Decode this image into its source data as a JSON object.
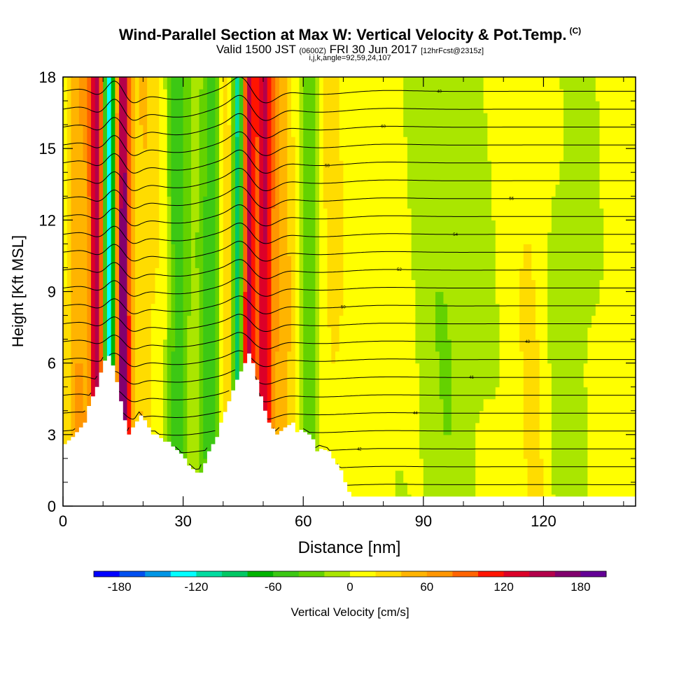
{
  "title": {
    "main": "Wind-Parallel Section at Max W: Vertical Velocity & Pot.Temp.",
    "copyright_mark": "(C)",
    "valid_prefix": "Valid 1500 JST",
    "valid_utc": "(0600Z)",
    "valid_date": "FRI 30 Jun 2017",
    "forecast_info": "[12hrFcst@2315z]",
    "grid_info": "i,j,k,angle=92,59,24,107"
  },
  "chart_data": {
    "type": "heatmap",
    "xlabel": "Distance [nm]",
    "ylabel": "Height [Kft MSL]",
    "xlim": [
      0,
      143
    ],
    "ylim": [
      0,
      18
    ],
    "x_ticks": [
      0,
      30,
      60,
      90,
      120
    ],
    "y_ticks": [
      0,
      3,
      6,
      9,
      12,
      15,
      18
    ],
    "colorbar": {
      "label": "Vertical Velocity [cm/s]",
      "range": [
        -200,
        200
      ],
      "step": 20,
      "tick_values": [
        -180,
        -120,
        -60,
        0,
        60,
        120,
        180
      ],
      "colors": [
        "#0000ff",
        "#0050f0",
        "#0096e6",
        "#00ffff",
        "#00dca0",
        "#00c864",
        "#00b400",
        "#3cc814",
        "#64d200",
        "#aae600",
        "#ffff00",
        "#ffdc00",
        "#ffb400",
        "#ff9600",
        "#ff6400",
        "#ff1400",
        "#dc0028",
        "#b4004b",
        "#82006e",
        "#640096"
      ]
    },
    "updrafts": [
      {
        "x": 8.5,
        "w_max": 140
      },
      {
        "x": 15.0,
        "w_max": 170
      },
      {
        "x": 46.0,
        "w_max": 160
      },
      {
        "x": 50.0,
        "w_max": 110
      }
    ],
    "downdrafts": [
      {
        "x": 11.5,
        "w_min": -160
      },
      {
        "x": 44.0,
        "w_min": -150
      }
    ],
    "terrain_profile": {
      "x": [
        0,
        2,
        3,
        5,
        6,
        8,
        9,
        10,
        11,
        12,
        13,
        14,
        15,
        16,
        17,
        19,
        20,
        22,
        23,
        25,
        26,
        27,
        29,
        30,
        31,
        33,
        34,
        35,
        36,
        38,
        39,
        41,
        43,
        45,
        46,
        47,
        48,
        49,
        50,
        51,
        53,
        55,
        57,
        58,
        59,
        61,
        62,
        63,
        64,
        66,
        67,
        69,
        70,
        71,
        72,
        75,
        80,
        85,
        90,
        95,
        100,
        110,
        120,
        130,
        140,
        143
      ],
      "height": [
        2.6,
        2.9,
        3.1,
        3.5,
        4.2,
        5.0,
        5.6,
        6.1,
        6.3,
        5.9,
        5.2,
        4.4,
        3.6,
        3.0,
        3.3,
        3.8,
        3.6,
        3.0,
        3.0,
        2.7,
        2.7,
        2.5,
        2.2,
        2.0,
        1.7,
        1.4,
        1.4,
        1.8,
        2.3,
        2.9,
        3.5,
        4.4,
        5.3,
        6.0,
        6.4,
        6.0,
        5.3,
        4.6,
        4.0,
        3.5,
        3.0,
        3.3,
        3.5,
        3.1,
        3.2,
        3.0,
        2.8,
        2.3,
        2.4,
        2.3,
        2.0,
        1.5,
        1.0,
        0.6,
        0.4,
        0.4,
        0.4,
        0.4,
        0.4,
        0.4,
        0.4,
        0.4,
        0.4,
        0.4,
        0.4,
        0.4
      ]
    },
    "theta_contours": {
      "variable": "potential temperature",
      "labels": [
        "40",
        "42",
        "44",
        "46",
        "48",
        "50",
        "52",
        "54",
        "56",
        "58",
        "60"
      ]
    }
  }
}
